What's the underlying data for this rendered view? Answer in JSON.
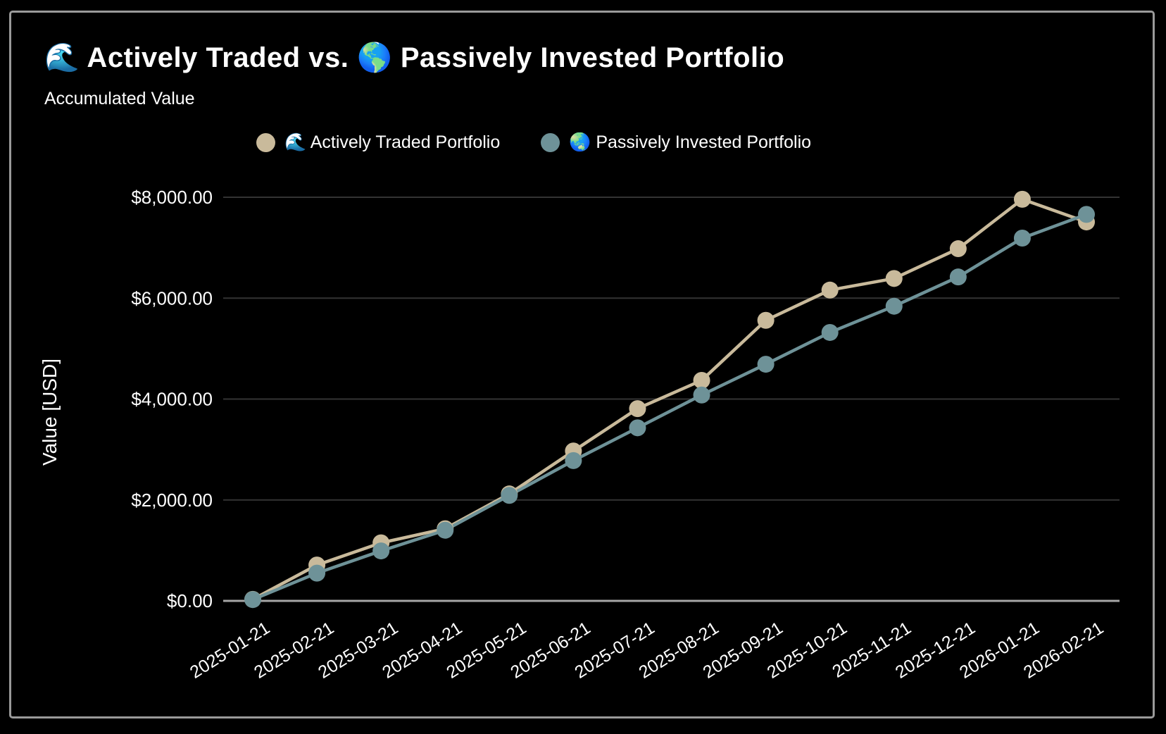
{
  "window": {
    "background_color": "#000000",
    "card_border_color": "#9a9a9a"
  },
  "header": {
    "title": "🌊 Actively Traded vs. 🌎 Passively Invested Portfolio",
    "subtitle": "Accumulated Value"
  },
  "legend": {
    "items": [
      {
        "label": "🌊 Actively Traded Portfolio",
        "color": "#c9ba9b"
      },
      {
        "label": "🌏 Passively Invested Portfolio",
        "color": "#6e9298"
      }
    ]
  },
  "chart_data": {
    "type": "line",
    "title": "🌊 Actively Traded vs. 🌎 Passively Invested Portfolio",
    "subtitle": "Accumulated Value",
    "xlabel": "",
    "ylabel": "Value [USD]",
    "ylim": [
      0,
      8000
    ],
    "grid": true,
    "legend_position": "top-center",
    "x": [
      "2025-01-21",
      "2025-02-21",
      "2025-03-21",
      "2025-04-21",
      "2025-05-21",
      "2025-06-21",
      "2025-07-21",
      "2025-08-21",
      "2025-09-21",
      "2025-10-21",
      "2025-11-21",
      "2025-12-21",
      "2026-01-21",
      "2026-02-21"
    ],
    "yticks": [
      {
        "value": 0,
        "label": "$0.00"
      },
      {
        "value": 2000,
        "label": "$2,000.00"
      },
      {
        "value": 4000,
        "label": "$4,000.00"
      },
      {
        "value": 6000,
        "label": "$6,000.00"
      },
      {
        "value": 8000,
        "label": "$8,000.00"
      }
    ],
    "series": [
      {
        "name": "🌊 Actively Traded Portfolio",
        "color": "#c9ba9b",
        "values": [
          30,
          710,
          1150,
          1430,
          2120,
          2970,
          3810,
          4370,
          5560,
          6160,
          6390,
          6980,
          7960,
          7510
        ]
      },
      {
        "name": "🌏 Passively Invested Portfolio",
        "color": "#6e9298",
        "values": [
          25,
          550,
          990,
          1400,
          2090,
          2780,
          3430,
          4080,
          4690,
          5320,
          5840,
          6420,
          7190,
          7660
        ]
      }
    ],
    "colors": {
      "axis_line": "#a6a6a6",
      "grid_line": "#333333",
      "tick_label": "#ffffff"
    }
  }
}
